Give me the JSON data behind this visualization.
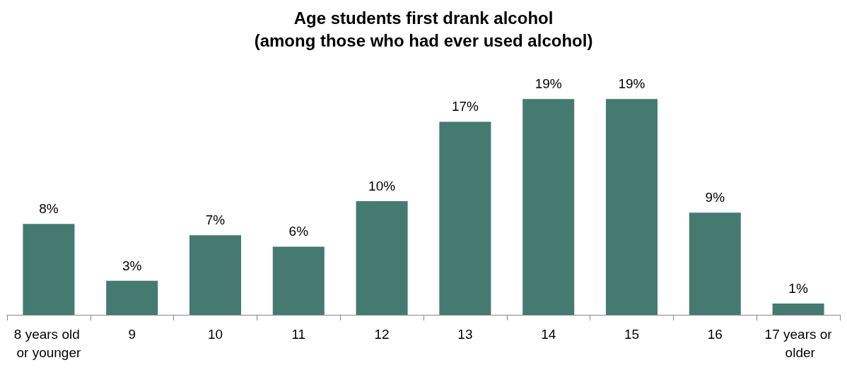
{
  "chart_data": {
    "type": "bar",
    "title": "Age students first drank alcohol",
    "subtitle": "(among those who had ever used alcohol)",
    "categories": [
      "8 years old or younger",
      "9",
      "10",
      "11",
      "12",
      "13",
      "14",
      "15",
      "16",
      "17 years or older"
    ],
    "values": [
      8,
      3,
      7,
      6,
      10,
      17,
      19,
      19,
      9,
      1
    ],
    "value_labels": [
      "8%",
      "3%",
      "7%",
      "6%",
      "10%",
      "17%",
      "19%",
      "19%",
      "9%",
      "1%"
    ],
    "color": "#457a70",
    "tick_labels": "x"
  }
}
